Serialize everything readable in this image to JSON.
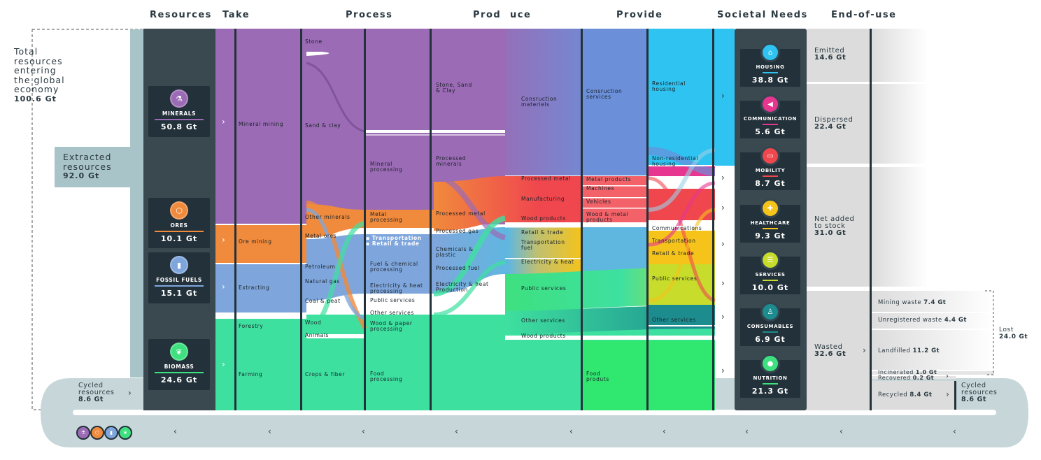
{
  "headers": {
    "resources": "Resources",
    "take": "Take",
    "process": "Process",
    "prod": "Prod",
    "uce": "uce",
    "provide": "Provide",
    "societal_needs": "Societal Needs",
    "end_of_use": "End-of-use"
  },
  "total": {
    "line1": "Total",
    "line2": "resources",
    "line3": "entering",
    "line4": "the global",
    "line5": "economy",
    "value": "100.6 Gt"
  },
  "extracted": {
    "line1": "Extracted",
    "line2": "resources",
    "value": "92.0 Gt"
  },
  "cycled_left": {
    "line1": "Cycled",
    "line2": "resources",
    "value": "8.6 Gt"
  },
  "cycled_right": {
    "line1": "Cycled",
    "line2": "resources",
    "value": "8.6 Gt"
  },
  "resources": [
    {
      "name": "MINERALS",
      "value": "50.8 Gt",
      "color": "#9b6bb5",
      "icon": "flask-icon"
    },
    {
      "name": "ORES",
      "value": "10.1 Gt",
      "color": "#f08a3c",
      "icon": "hexagon-icon"
    },
    {
      "name": "FOSSIL FUELS",
      "value": "15.1 Gt",
      "color": "#7fa6dc",
      "icon": "fuel-drop-icon"
    },
    {
      "name": "BIOMASS",
      "value": "24.6 Gt",
      "color": "#3ee07f",
      "icon": "leaf-icon"
    }
  ],
  "take": {
    "mineral_mining": "Mineral mining",
    "ore_mining": "Ore mining",
    "extracting": "Extracting",
    "forestry": "Forestry",
    "farming": "Farming"
  },
  "take2": {
    "stone": "Stone",
    "sand_clay": "Sand & clay",
    "other_minerals": "Other minerals",
    "metal_ores": "Metal ores",
    "petroleum": "Petroleum",
    "natural_gas": "Natural gas",
    "coal_peat": "Coal & peat",
    "wood": "Wood",
    "animals": "Animals",
    "crops_fiber": "Crops & fiber"
  },
  "process": {
    "mineral_processing": "Mineral\nprocessing",
    "metal_processing": "Metal\nprocessing",
    "transportation": "Transportation",
    "retail_trade": "Retail & trade",
    "fuel_chemical": "Fuel & chemical\nprocessing",
    "elec_heat": "Electricity & heat\nprocessing",
    "public_services": "Public services",
    "other_services": "Other services",
    "wood_paper": "Wood & paper\nprocessing",
    "food_processing": "Food\nprocessing"
  },
  "produce": {
    "stone_sand_clay": "Stone, Sand\n& Clay",
    "processed_minerals": "Processed\nminerals",
    "processed_metal": "Processed metal",
    "processed_gas": "Processed gas",
    "chemicals_plastic": "Chemicals &\nplastic",
    "processed_fuel": "Processed fuel",
    "elec_production": "Electricity & heat\nProduction"
  },
  "produce2": {
    "construction_materials": "Consruction\nmateriels",
    "processed_metal": "Processed metal",
    "manufacturing": "Manufacturing",
    "wood_products": "Wood products",
    "retail_trade": "Retail & trade",
    "transportation_fuel": "Transportation\nfuel",
    "electricity_heat": "Electricity & heat",
    "public_services": "Public services",
    "other_services": "Other services",
    "wood_products2": "Wood products"
  },
  "provide": {
    "construction_services": "Consruction\nservices",
    "metal_products": "Metal products",
    "machines": "Machines",
    "vehicles": "Vehicles",
    "wood_metal_products": "Wood & metal\nproducts",
    "food_products": "Food\nproduts"
  },
  "provide2": {
    "residential_housing": "Residential\nhousing",
    "non_residential_housing": "Non-residential\nhousing",
    "communications": "Communications",
    "transportation": "Transportation",
    "retail_trade": "Retail & trade",
    "public_services": "Public services",
    "other_services": "Other services"
  },
  "needs": [
    {
      "name": "HOUSING",
      "value": "38.8 Gt",
      "color": "#2ec3f0",
      "icon": "house-icon"
    },
    {
      "name": "COMMUNICATION",
      "value": "5.6 Gt",
      "color": "#e6368f",
      "icon": "megaphone-icon"
    },
    {
      "name": "MOBILITY",
      "value": "8.7 Gt",
      "color": "#f0474e",
      "icon": "bus-icon"
    },
    {
      "name": "HEALTHCARE",
      "value": "9.3 Gt",
      "color": "#f5c31a",
      "icon": "medical-cross-icon"
    },
    {
      "name": "SERVICES",
      "value": "10.0 Gt",
      "color": "#c7dc2b",
      "icon": "document-icon"
    },
    {
      "name": "CONSUMABLES",
      "value": "6.9 Gt",
      "color": "#1c8c8e",
      "icon": "tshirt-icon"
    },
    {
      "name": "NUTRITION",
      "value": "21.3 Gt",
      "color": "#3ee07f",
      "icon": "apple-icon"
    }
  ],
  "end_of_use": {
    "emitted": {
      "label": "Emitted",
      "value": "14.6 Gt"
    },
    "dispersed": {
      "label": "Dispersed",
      "value": "22.4 Gt"
    },
    "net_added": {
      "label": "Net added\nto stock",
      "value": "31.0 Gt"
    },
    "wasted": {
      "label": "Wasted",
      "value": "32.6 Gt"
    }
  },
  "waste": {
    "mining_waste": {
      "label": "Mining waste",
      "value": "7.4 Gt"
    },
    "unregistered_waste": {
      "label": "Unregistered waste",
      "value": "4.4 Gt"
    },
    "landfilled": {
      "label": "Landfilled",
      "value": "11.2 Gt"
    },
    "incinerated": {
      "label": "Incinerated",
      "value": "1.0 Gt"
    },
    "recovered": {
      "label": "Recovered",
      "value": "0.2 Gt"
    },
    "recycled": {
      "label": "Recycled",
      "value": "8.4 Gt"
    }
  },
  "lost": {
    "label": "Lost",
    "value": "24.0 Gt"
  },
  "chevrons": {
    "right": "›",
    "left": "‹"
  }
}
